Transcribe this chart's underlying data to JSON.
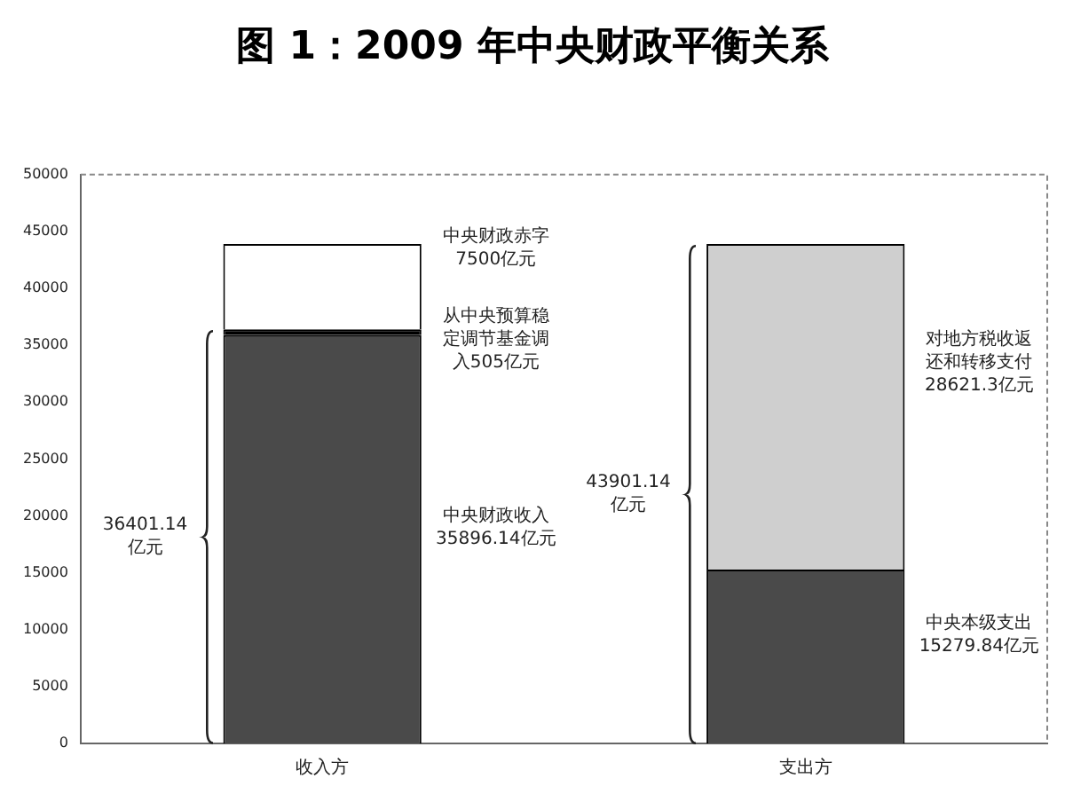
{
  "chart_data": {
    "type": "bar",
    "title": "图 1：2009 年中央财政平衡关系",
    "categories": [
      "收入方",
      "支出方"
    ],
    "stacked": true,
    "series": [
      {
        "colors": [
          "#4a4a4a",
          "#4a4a4a"
        ],
        "values": [
          35896.14,
          15279.84
        ]
      },
      {
        "colors": [
          "#000000",
          "#cfcfcf"
        ],
        "values": [
          505,
          28621.3
        ]
      },
      {
        "colors": [
          "#ffffff",
          null
        ],
        "values": [
          7500,
          null
        ]
      }
    ],
    "ylim": [
      0,
      50000
    ],
    "yticks": [
      0,
      5000,
      10000,
      15000,
      20000,
      25000,
      30000,
      35000,
      40000,
      45000,
      50000
    ],
    "grid": false,
    "legend": false,
    "annotations": [
      "中央财政赤字7500亿元",
      "从中央预算稳定调节基金调入505亿元",
      "中央财政收入35896.14亿元",
      "36401.14亿元",
      "对地方税收返还和转移支付28621.3亿元",
      "中央本级支出15279.84亿元",
      "43901.14亿元"
    ]
  }
}
